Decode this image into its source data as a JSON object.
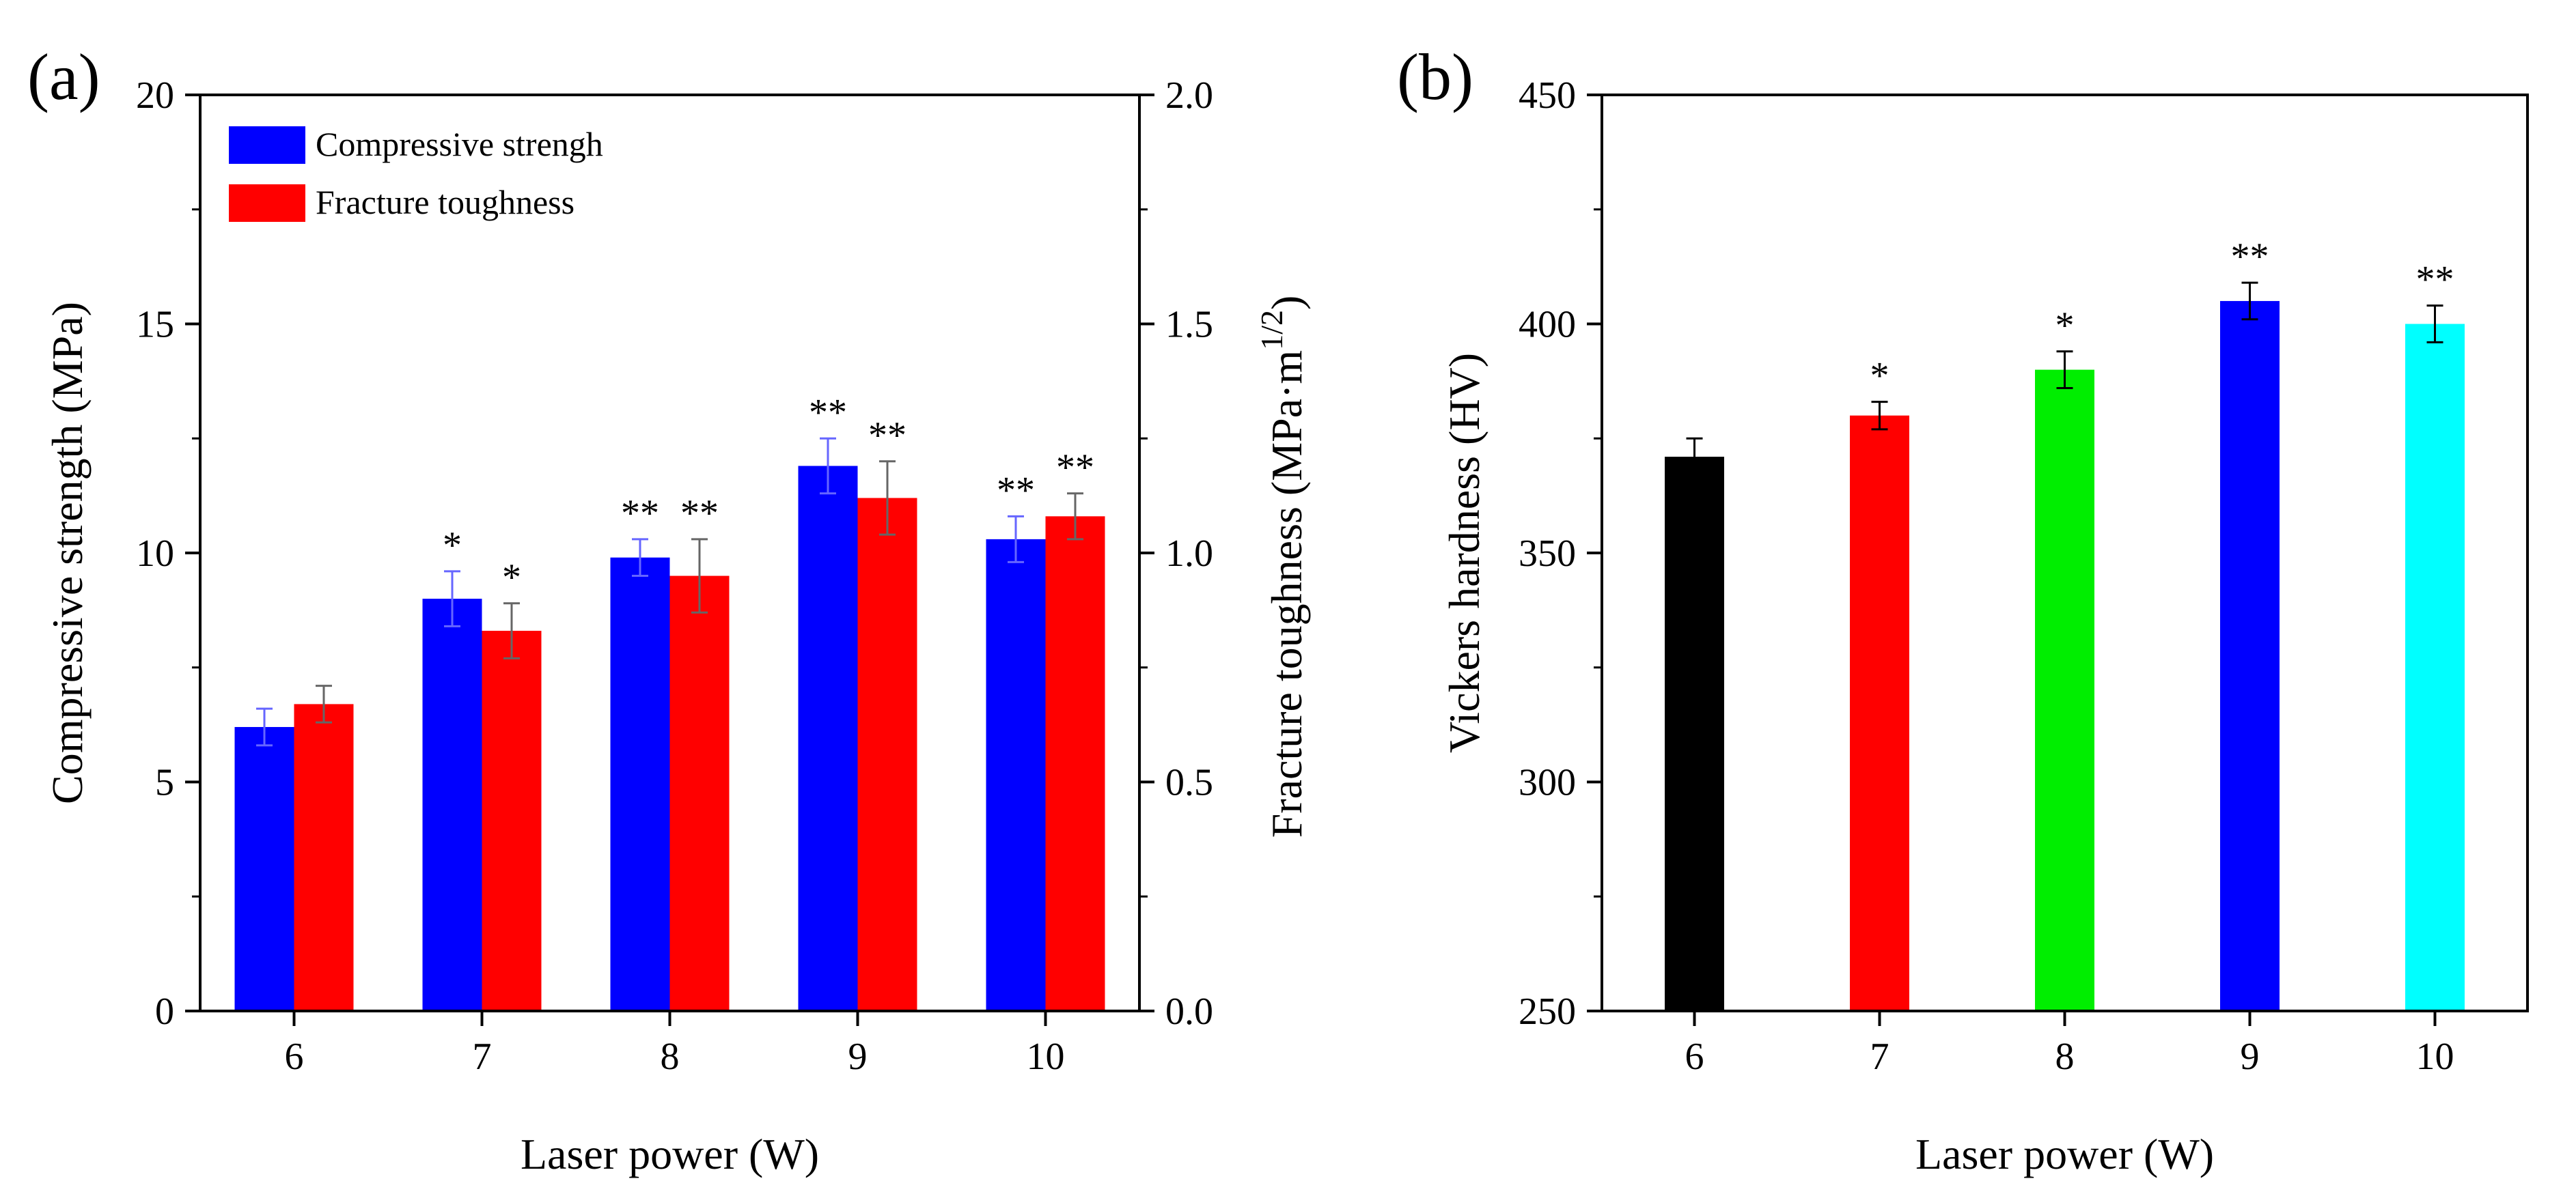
{
  "chart_data": [
    {
      "panel_label": "(a)",
      "type": "bar",
      "categories": [
        "6",
        "7",
        "8",
        "9",
        "10"
      ],
      "xlabel": "Laser power (W)",
      "ylabel": "Compressive strength (MPa)",
      "y2label_text": "Fracture toughness (MPa·m",
      "y2label_sup": "1/2",
      "y2label_close": ")",
      "ylim": [
        0,
        20
      ],
      "y2lim": [
        0,
        2.0
      ],
      "yticks": [
        "0",
        "5",
        "10",
        "15",
        "20"
      ],
      "y2ticks": [
        "0.0",
        "0.5",
        "1.0",
        "1.5",
        "2.0"
      ],
      "legend_position": "top-left",
      "series": [
        {
          "name": "Compressive strengh",
          "axis": "left",
          "color": "#0000ff",
          "errorbar_color": "#6666ff",
          "values": [
            6.2,
            9.0,
            9.9,
            11.9,
            10.3
          ],
          "errors": [
            0.4,
            0.6,
            0.4,
            0.6,
            0.5
          ],
          "significance": [
            "",
            "*",
            "**",
            "**",
            "**"
          ]
        },
        {
          "name": "Fracture toughness",
          "axis": "right",
          "color": "#ff0000",
          "errorbar_color": "#666666",
          "values": [
            0.67,
            0.83,
            0.95,
            1.12,
            1.08
          ],
          "errors": [
            0.04,
            0.06,
            0.08,
            0.08,
            0.05
          ],
          "significance": [
            "",
            "*",
            "**",
            "**",
            "**"
          ]
        }
      ]
    },
    {
      "panel_label": "(b)",
      "type": "bar",
      "categories": [
        "6",
        "7",
        "8",
        "9",
        "10"
      ],
      "xlabel": "Laser power (W)",
      "ylabel": "Vickers hardness (HV)",
      "ylim": [
        250,
        450
      ],
      "yticks": [
        "250",
        "300",
        "350",
        "400",
        "450"
      ],
      "values": [
        371,
        380,
        390,
        405,
        400
      ],
      "errors": [
        4,
        3,
        4,
        4,
        4
      ],
      "colors": [
        "#000000",
        "#ff0000",
        "#00ee00",
        "#0000ff",
        "#00ffff"
      ],
      "significance": [
        "",
        "*",
        "*",
        "**",
        "**"
      ]
    }
  ]
}
